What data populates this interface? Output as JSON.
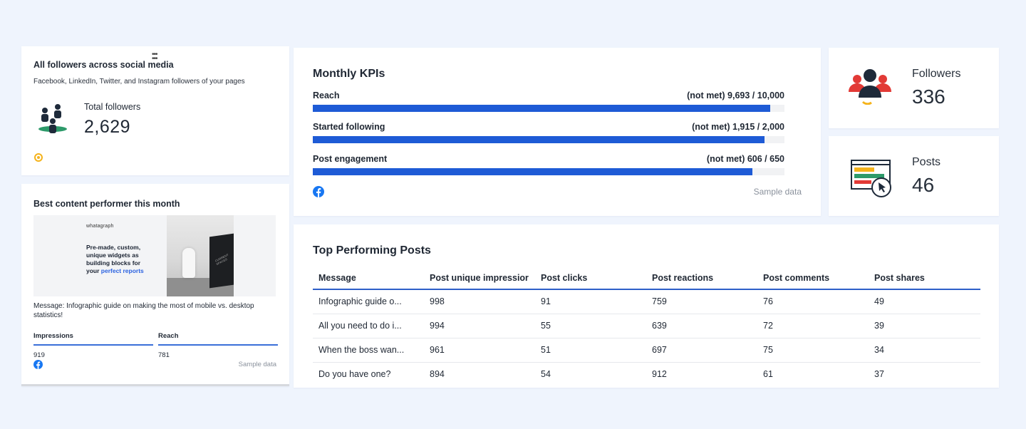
{
  "colors": {
    "background": "#eff4fd",
    "bar_fill": "#1e5bd6",
    "accent_underline": "#2e5fc9",
    "facebook": "#1877f2",
    "ring": "#f5b31b"
  },
  "all_followers": {
    "title": "All followers across social media",
    "subtitle": "Facebook, LinkedIn, Twitter, and Instagram followers of your pages",
    "metric_label": "Total followers",
    "metric_value": "2,629",
    "icon": "people-group-icon"
  },
  "best_content": {
    "title": "Best content performer this month",
    "thumbnail": {
      "brand": "whatagraph",
      "headline_lines": [
        "Pre-made, custom,",
        "unique widgets as",
        "building blocks for",
        "your "
      ],
      "headline_highlight": "perfect reports",
      "laptop_text": "CURRENT SPACES"
    },
    "message": "Message: Infographic guide on making the most of mobile vs. desktop statistics!",
    "columns": [
      {
        "header": "Impressions",
        "value": "919"
      },
      {
        "header": "Reach",
        "value": "781"
      }
    ],
    "sample_label": "Sample data",
    "source_icon": "facebook-icon"
  },
  "monthly_kpis": {
    "title": "Monthly KPIs",
    "items": [
      {
        "label": "Reach",
        "status_text": "(not met) 9,693 / 10,000",
        "progress": 0.9693
      },
      {
        "label": "Started following",
        "status_text": "(not met) 1,915 / 2,000",
        "progress": 0.9575
      },
      {
        "label": "Post engagement",
        "status_text": "(not met) 606 / 650",
        "progress": 0.9323
      }
    ],
    "sample_label": "Sample data",
    "source_icon": "facebook-icon"
  },
  "followers_stat": {
    "label": "Followers",
    "value": "336",
    "icon": "followers-group-icon"
  },
  "posts_stat": {
    "label": "Posts",
    "value": "46",
    "icon": "post-click-icon"
  },
  "top_posts": {
    "title": "Top Performing Posts",
    "columns": [
      "Message",
      "Post unique impressior",
      "Post clicks",
      "Post reactions",
      "Post comments",
      "Post shares"
    ],
    "rows": [
      [
        "Infographic guide o...",
        "998",
        "91",
        "759",
        "76",
        "49"
      ],
      [
        "All you need to do i...",
        "994",
        "55",
        "639",
        "72",
        "39"
      ],
      [
        "When the boss wan...",
        "961",
        "51",
        "697",
        "75",
        "34"
      ],
      [
        "Do you have one?",
        "894",
        "54",
        "912",
        "61",
        "37"
      ]
    ]
  }
}
